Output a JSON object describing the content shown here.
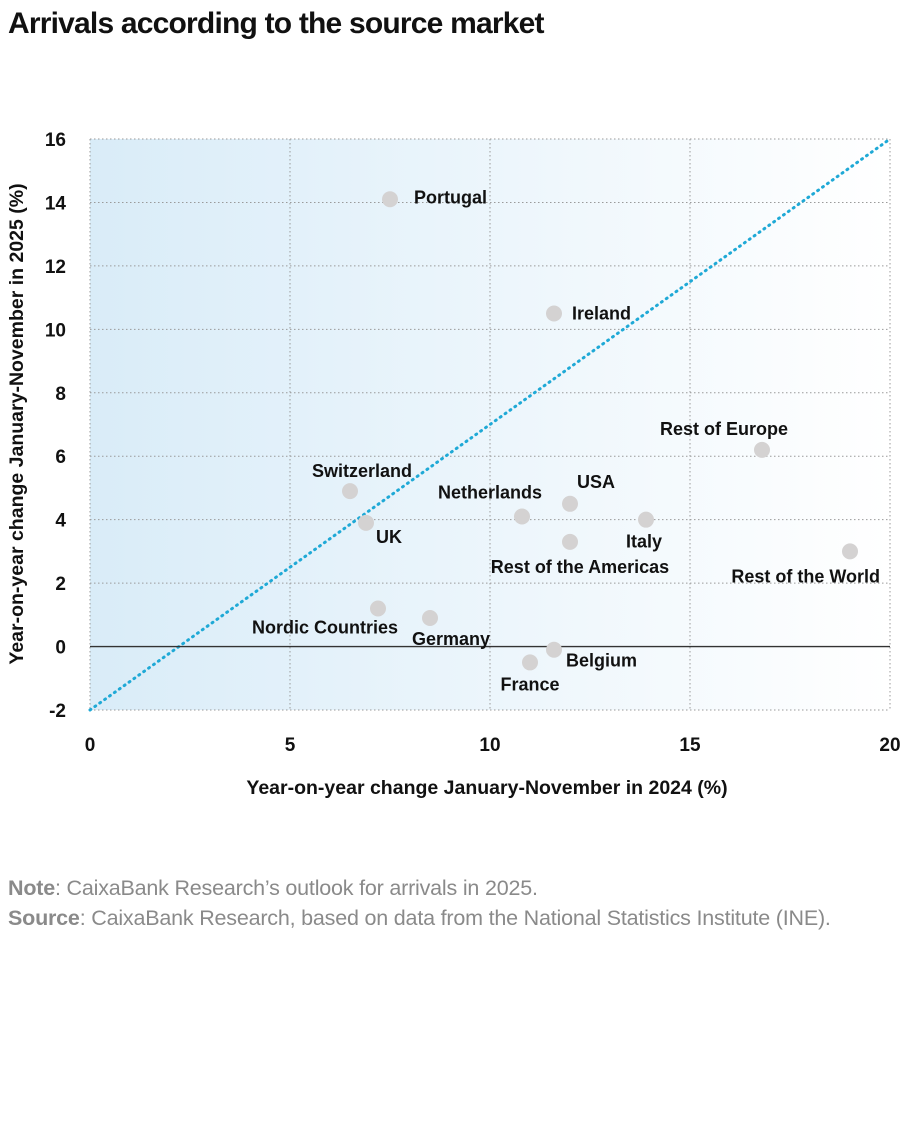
{
  "title": "Arrivals according to the source market",
  "notes": {
    "note_label": "Note",
    "note_text": ": CaixaBank Research’s outlook for arrivals in 2025.",
    "source_label": "Source",
    "source_text": ": CaixaBank Research, based on data from the National Statistics Institute (INE)."
  },
  "colors": {
    "point": "#d4d2d2",
    "diagonal": "#1fa9d6",
    "zero_line": "#333333",
    "grid": "#9a9a9a",
    "bg_left": "#d9ecf8",
    "bg_right": "#ffffff"
  },
  "chart_data": {
    "type": "scatter",
    "xlabel": "Year-on-year change January-November in 2024 (%)",
    "ylabel": "Year-on-year change January-November in 2025 (%)",
    "xlim": [
      0,
      20
    ],
    "ylim": [
      -2,
      16
    ],
    "xticks": [
      0,
      5,
      10,
      15,
      20
    ],
    "yticks": [
      -2,
      0,
      2,
      4,
      6,
      8,
      10,
      12,
      14,
      16
    ],
    "grid": true,
    "reference_lines": [
      {
        "type": "diagonal",
        "from": [
          0,
          -2
        ],
        "to": [
          20,
          16
        ],
        "style": "dotted"
      },
      {
        "type": "horizontal",
        "y": 0,
        "style": "solid"
      }
    ],
    "points": [
      {
        "label": "Portugal",
        "x": 7.5,
        "y": 14.1
      },
      {
        "label": "Ireland",
        "x": 11.6,
        "y": 10.5
      },
      {
        "label": "Rest of Europe",
        "x": 16.8,
        "y": 6.2
      },
      {
        "label": "Switzerland",
        "x": 6.5,
        "y": 4.9
      },
      {
        "label": "UK",
        "x": 6.9,
        "y": 3.9
      },
      {
        "label": "Netherlands",
        "x": 10.8,
        "y": 4.1
      },
      {
        "label": "USA",
        "x": 12.0,
        "y": 4.5
      },
      {
        "label": "Italy",
        "x": 13.9,
        "y": 4.0
      },
      {
        "label": "Rest of the Americas",
        "x": 12.0,
        "y": 3.3
      },
      {
        "label": "Rest of the World",
        "x": 19.0,
        "y": 3.0
      },
      {
        "label": "Nordic Countries",
        "x": 7.2,
        "y": 1.2
      },
      {
        "label": "Germany",
        "x": 8.5,
        "y": 0.9
      },
      {
        "label": "Belgium",
        "x": 11.6,
        "y": -0.1
      },
      {
        "label": "France",
        "x": 11.0,
        "y": -0.5
      }
    ]
  }
}
